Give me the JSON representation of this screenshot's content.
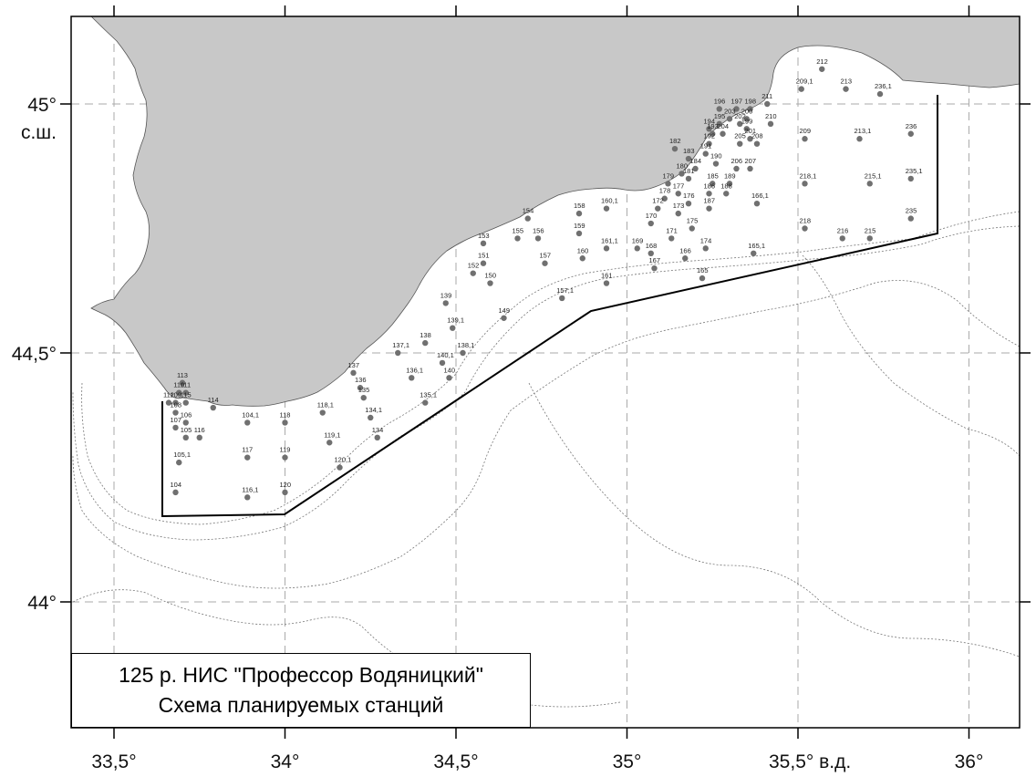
{
  "title": {
    "line1": "125 р. НИС \"Профессор Водяницкий\"",
    "line2": "Схема планируемых станций"
  },
  "axes": {
    "x_labels": [
      "33,5°",
      "34°",
      "34,5°",
      "35°",
      "35,5° в.д.",
      "36°"
    ],
    "y_labels": [
      "45°",
      "44,5°",
      "44°"
    ],
    "y_unit": "с.ш."
  },
  "colors": {
    "land": "#c8c8c8",
    "station": "#707070",
    "route": "#000000",
    "grid": "#aaaaaa"
  },
  "stations": [
    {
      "n": "212",
      "lon": 35.57,
      "lat": 45.07
    },
    {
      "n": "209,1",
      "lon": 35.51,
      "lat": 45.03
    },
    {
      "n": "213",
      "lon": 35.64,
      "lat": 45.03
    },
    {
      "n": "236,1",
      "lon": 35.74,
      "lat": 45.02
    },
    {
      "n": "211",
      "lon": 35.41,
      "lat": 45.0
    },
    {
      "n": "196",
      "lon": 35.27,
      "lat": 44.99
    },
    {
      "n": "197",
      "lon": 35.32,
      "lat": 44.99
    },
    {
      "n": "198",
      "lon": 35.36,
      "lat": 44.99
    },
    {
      "n": "200",
      "lon": 35.35,
      "lat": 44.97
    },
    {
      "n": "203",
      "lon": 35.3,
      "lat": 44.97
    },
    {
      "n": "195",
      "lon": 35.27,
      "lat": 44.96
    },
    {
      "n": "210",
      "lon": 35.42,
      "lat": 44.96
    },
    {
      "n": "202",
      "lon": 35.33,
      "lat": 44.96
    },
    {
      "n": "194",
      "lon": 35.24,
      "lat": 44.95
    },
    {
      "n": "199",
      "lon": 35.35,
      "lat": 44.95
    },
    {
      "n": "193",
      "lon": 35.25,
      "lat": 44.94
    },
    {
      "n": "204",
      "lon": 35.28,
      "lat": 44.94
    },
    {
      "n": "201",
      "lon": 35.36,
      "lat": 44.93
    },
    {
      "n": "209",
      "lon": 35.52,
      "lat": 44.93
    },
    {
      "n": "213,1",
      "lon": 35.68,
      "lat": 44.93
    },
    {
      "n": "236",
      "lon": 35.83,
      "lat": 44.94
    },
    {
      "n": "192",
      "lon": 35.24,
      "lat": 44.92
    },
    {
      "n": "205",
      "lon": 35.33,
      "lat": 44.92
    },
    {
      "n": "208",
      "lon": 35.38,
      "lat": 44.92
    },
    {
      "n": "182",
      "lon": 35.14,
      "lat": 44.91
    },
    {
      "n": "191",
      "lon": 35.23,
      "lat": 44.9
    },
    {
      "n": "183",
      "lon": 35.18,
      "lat": 44.89
    },
    {
      "n": "190",
      "lon": 35.26,
      "lat": 44.88
    },
    {
      "n": "206",
      "lon": 35.32,
      "lat": 44.87
    },
    {
      "n": "207",
      "lon": 35.36,
      "lat": 44.87
    },
    {
      "n": "184",
      "lon": 35.2,
      "lat": 44.87
    },
    {
      "n": "180",
      "lon": 35.16,
      "lat": 44.86
    },
    {
      "n": "181",
      "lon": 35.18,
      "lat": 44.85
    },
    {
      "n": "185",
      "lon": 35.25,
      "lat": 44.84
    },
    {
      "n": "189",
      "lon": 35.3,
      "lat": 44.84
    },
    {
      "n": "218,1",
      "lon": 35.52,
      "lat": 44.84
    },
    {
      "n": "215,1",
      "lon": 35.71,
      "lat": 44.84
    },
    {
      "n": "235,1",
      "lon": 35.83,
      "lat": 44.85
    },
    {
      "n": "179",
      "lon": 35.12,
      "lat": 44.84
    },
    {
      "n": "177",
      "lon": 35.15,
      "lat": 44.82
    },
    {
      "n": "186",
      "lon": 35.24,
      "lat": 44.82
    },
    {
      "n": "188",
      "lon": 35.29,
      "lat": 44.82
    },
    {
      "n": "178",
      "lon": 35.11,
      "lat": 44.81
    },
    {
      "n": "176",
      "lon": 35.18,
      "lat": 44.8
    },
    {
      "n": "166,1",
      "lon": 35.38,
      "lat": 44.8
    },
    {
      "n": "187",
      "lon": 35.24,
      "lat": 44.79
    },
    {
      "n": "158",
      "lon": 34.86,
      "lat": 44.78
    },
    {
      "n": "160,1",
      "lon": 34.94,
      "lat": 44.79
    },
    {
      "n": "172",
      "lon": 35.09,
      "lat": 44.79
    },
    {
      "n": "173",
      "lon": 35.15,
      "lat": 44.78
    },
    {
      "n": "154",
      "lon": 34.71,
      "lat": 44.77
    },
    {
      "n": "170",
      "lon": 35.07,
      "lat": 44.76
    },
    {
      "n": "175",
      "lon": 35.19,
      "lat": 44.75
    },
    {
      "n": "235",
      "lon": 35.83,
      "lat": 44.77
    },
    {
      "n": "218",
      "lon": 35.52,
      "lat": 44.75
    },
    {
      "n": "159",
      "lon": 34.86,
      "lat": 44.74
    },
    {
      "n": "155",
      "lon": 34.68,
      "lat": 44.73
    },
    {
      "n": "156",
      "lon": 34.74,
      "lat": 44.73
    },
    {
      "n": "171",
      "lon": 35.13,
      "lat": 44.73
    },
    {
      "n": "216",
      "lon": 35.63,
      "lat": 44.73
    },
    {
      "n": "215",
      "lon": 35.71,
      "lat": 44.73
    },
    {
      "n": "153",
      "lon": 34.58,
      "lat": 44.72
    },
    {
      "n": "161,1",
      "lon": 34.94,
      "lat": 44.71
    },
    {
      "n": "169",
      "lon": 35.03,
      "lat": 44.71
    },
    {
      "n": "174",
      "lon": 35.23,
      "lat": 44.71
    },
    {
      "n": "168",
      "lon": 35.07,
      "lat": 44.7
    },
    {
      "n": "165,1",
      "lon": 35.37,
      "lat": 44.7
    },
    {
      "n": "160",
      "lon": 34.87,
      "lat": 44.69
    },
    {
      "n": "166",
      "lon": 35.17,
      "lat": 44.69
    },
    {
      "n": "151",
      "lon": 34.58,
      "lat": 44.68
    },
    {
      "n": "157",
      "lon": 34.76,
      "lat": 44.68
    },
    {
      "n": "167",
      "lon": 35.08,
      "lat": 44.67
    },
    {
      "n": "152",
      "lon": 34.55,
      "lat": 44.66
    },
    {
      "n": "165",
      "lon": 35.22,
      "lat": 44.65
    },
    {
      "n": "150",
      "lon": 34.6,
      "lat": 44.64
    },
    {
      "n": "161",
      "lon": 34.94,
      "lat": 44.64
    },
    {
      "n": "157,1",
      "lon": 34.81,
      "lat": 44.61
    },
    {
      "n": "139",
      "lon": 34.47,
      "lat": 44.6
    },
    {
      "n": "149",
      "lon": 34.64,
      "lat": 44.57
    },
    {
      "n": "139,1",
      "lon": 34.49,
      "lat": 44.55
    },
    {
      "n": "138",
      "lon": 34.41,
      "lat": 44.52
    },
    {
      "n": "138,1",
      "lon": 34.52,
      "lat": 44.5
    },
    {
      "n": "137,1",
      "lon": 34.33,
      "lat": 44.5
    },
    {
      "n": "140,1",
      "lon": 34.46,
      "lat": 44.48
    },
    {
      "n": "137",
      "lon": 34.2,
      "lat": 44.46
    },
    {
      "n": "136,1",
      "lon": 34.37,
      "lat": 44.45
    },
    {
      "n": "140",
      "lon": 34.48,
      "lat": 44.45
    },
    {
      "n": "136",
      "lon": 34.22,
      "lat": 44.43
    },
    {
      "n": "135",
      "lon": 34.23,
      "lat": 44.41
    },
    {
      "n": "113",
      "lon": 33.7,
      "lat": 44.44
    },
    {
      "n": "110",
      "lon": 33.69,
      "lat": 44.42
    },
    {
      "n": "111",
      "lon": 33.71,
      "lat": 44.42
    },
    {
      "n": "135,1",
      "lon": 34.41,
      "lat": 44.4
    },
    {
      "n": "118,1",
      "lon": 34.11,
      "lat": 44.38
    },
    {
      "n": "134,1",
      "lon": 34.25,
      "lat": 44.37
    },
    {
      "n": "112",
      "lon": 33.66,
      "lat": 44.4
    },
    {
      "n": "109",
      "lon": 33.68,
      "lat": 44.4
    },
    {
      "n": "115",
      "lon": 33.71,
      "lat": 44.4
    },
    {
      "n": "114",
      "lon": 33.79,
      "lat": 44.39
    },
    {
      "n": "108",
      "lon": 33.68,
      "lat": 44.38
    },
    {
      "n": "104,1",
      "lon": 33.89,
      "lat": 44.36
    },
    {
      "n": "118",
      "lon": 34.0,
      "lat": 44.36
    },
    {
      "n": "106",
      "lon": 33.71,
      "lat": 44.36
    },
    {
      "n": "107",
      "lon": 33.68,
      "lat": 44.35
    },
    {
      "n": "116",
      "lon": 33.75,
      "lat": 44.33
    },
    {
      "n": "105",
      "lon": 33.71,
      "lat": 44.33
    },
    {
      "n": "119,1",
      "lon": 34.13,
      "lat": 44.32
    },
    {
      "n": "134",
      "lon": 34.27,
      "lat": 44.33
    },
    {
      "n": "105,1",
      "lon": 33.69,
      "lat": 44.28
    },
    {
      "n": "117",
      "lon": 33.89,
      "lat": 44.29
    },
    {
      "n": "119",
      "lon": 34.0,
      "lat": 44.29
    },
    {
      "n": "120,1",
      "lon": 34.16,
      "lat": 44.27
    },
    {
      "n": "104",
      "lon": 33.68,
      "lat": 44.22
    },
    {
      "n": "120",
      "lon": 34.0,
      "lat": 44.22
    },
    {
      "n": "116,1",
      "lon": 33.89,
      "lat": 44.21
    }
  ]
}
